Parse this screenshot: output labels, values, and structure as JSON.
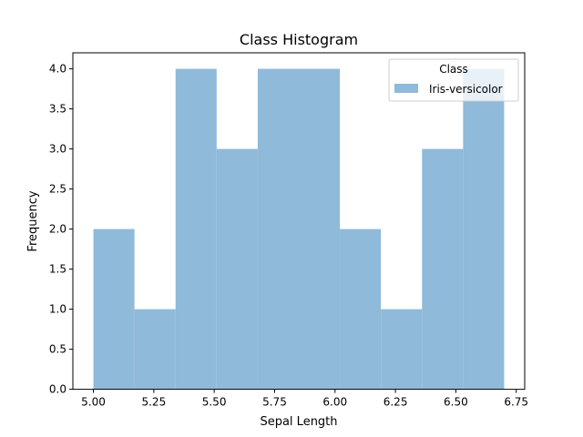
{
  "chart_data": {
    "type": "bar",
    "title": "Class Histogram",
    "xlabel": "Sepal Length",
    "ylabel": "Frequency",
    "xlim": [
      4.915,
      6.785
    ],
    "ylim": [
      0,
      4.2
    ],
    "bin_edges": [
      5.0,
      5.17,
      5.34,
      5.51,
      5.68,
      5.85,
      6.02,
      6.19,
      6.36,
      6.53,
      6.7
    ],
    "series": [
      {
        "name": "Iris-versicolor",
        "values": [
          2,
          1,
          4,
          3,
          4,
          4,
          2,
          1,
          3,
          4
        ]
      }
    ],
    "xticks": [
      5.0,
      5.25,
      5.5,
      5.75,
      6.0,
      6.25,
      6.5,
      6.75
    ],
    "xtick_labels": [
      "5.00",
      "5.25",
      "5.50",
      "5.75",
      "6.00",
      "6.25",
      "6.50",
      "6.75"
    ],
    "yticks": [
      0,
      0.5,
      1,
      1.5,
      2,
      2.5,
      3,
      3.5,
      4
    ],
    "ytick_labels": [
      "0.0",
      "0.5",
      "1.0",
      "1.5",
      "2.0",
      "2.5",
      "3.0",
      "3.5",
      "4.0"
    ],
    "legend": {
      "title": "Class",
      "placement": "top-right"
    },
    "grid": false,
    "bar_color": "#8fbad9"
  }
}
